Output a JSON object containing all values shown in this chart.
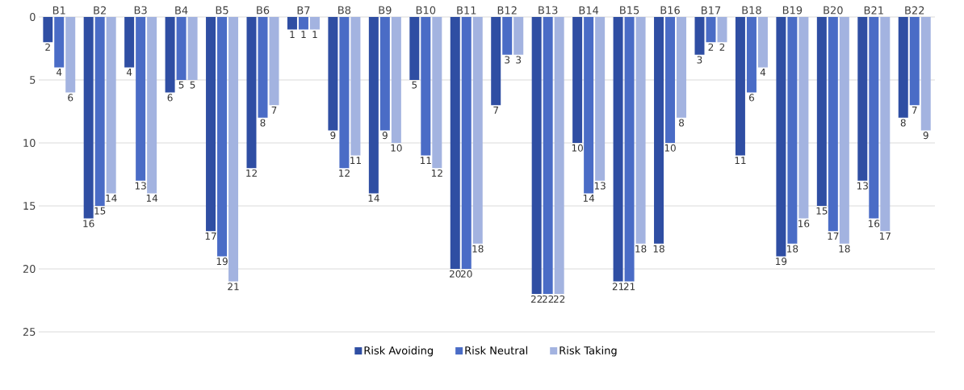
{
  "chart_data": {
    "type": "bar",
    "categories": [
      "B1",
      "B2",
      "B3",
      "B4",
      "B5",
      "B6",
      "B7",
      "B8",
      "B9",
      "B10",
      "B11",
      "B12",
      "B13",
      "B14",
      "B15",
      "B16",
      "B17",
      "B18",
      "B19",
      "B20",
      "B21",
      "B22"
    ],
    "series": [
      {
        "name": "Risk Avoiding",
        "color": "#2f4ea3",
        "values": [
          2,
          16,
          4,
          6,
          17,
          12,
          1,
          9,
          14,
          5,
          20,
          7,
          22,
          10,
          21,
          18,
          3,
          11,
          19,
          15,
          13,
          8
        ]
      },
      {
        "name": "Risk Neutral",
        "color": "#4a6cc6",
        "values": [
          4,
          15,
          13,
          5,
          19,
          8,
          1,
          12,
          9,
          11,
          20,
          3,
          22,
          14,
          21,
          10,
          2,
          6,
          18,
          17,
          16,
          7
        ]
      },
      {
        "name": "Risk Taking",
        "color": "#a3b3e0",
        "values": [
          6,
          14,
          14,
          5,
          21,
          7,
          1,
          11,
          10,
          12,
          18,
          3,
          22,
          13,
          18,
          8,
          2,
          4,
          16,
          18,
          17,
          9
        ]
      }
    ],
    "ylim": [
      25,
      0
    ],
    "yticks": [
      0,
      5,
      10,
      15,
      20,
      25
    ],
    "grid": "y",
    "legend": "bottom",
    "data_labels": true
  }
}
